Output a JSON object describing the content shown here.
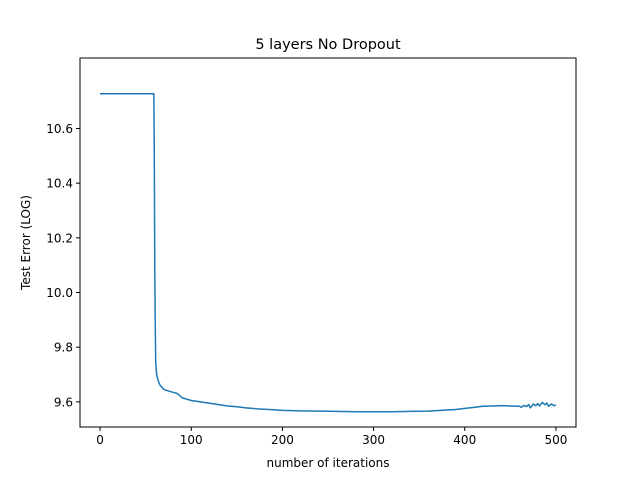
{
  "chart_data": {
    "type": "line",
    "title": "5 layers No Dropout",
    "xlabel": "number of iterations",
    "ylabel": "Test Error (LOG)",
    "xlim": [
      -22,
      522
    ],
    "ylim": [
      9.508,
      10.858
    ],
    "xticks": [
      0,
      100,
      200,
      300,
      400,
      500
    ],
    "xtick_labels": [
      "0",
      "100",
      "200",
      "300",
      "400",
      "500"
    ],
    "yticks": [
      9.6,
      9.8,
      10.0,
      10.2,
      10.4,
      10.6
    ],
    "ytick_labels": [
      "9.6",
      "9.8",
      "10.0",
      "10.2",
      "10.4",
      "10.6"
    ],
    "grid": false,
    "line_color": "#1f77b4",
    "series": [
      {
        "x": [
          0,
          58,
          59,
          59.5,
          60,
          60.5,
          61,
          62,
          64,
          66,
          70,
          75,
          80,
          85,
          90,
          100,
          110,
          120,
          130,
          140,
          150,
          160,
          170,
          180,
          190,
          200,
          220,
          240,
          260,
          280,
          300,
          320,
          340,
          360,
          380,
          390,
          395,
          400,
          410,
          420,
          430,
          440,
          450,
          460,
          462,
          465,
          468,
          470,
          472,
          475,
          478,
          480,
          482,
          485,
          488,
          490,
          492,
          495,
          498,
          500
        ],
        "y": [
          10.727,
          10.727,
          10.727,
          10.5,
          10.1,
          9.9,
          9.75,
          9.7,
          9.675,
          9.66,
          9.645,
          9.64,
          9.635,
          9.63,
          9.615,
          9.605,
          9.6,
          9.595,
          9.59,
          9.585,
          9.582,
          9.578,
          9.575,
          9.573,
          9.571,
          9.569,
          9.567,
          9.566,
          9.565,
          9.564,
          9.564,
          9.564,
          9.565,
          9.566,
          9.57,
          9.572,
          9.574,
          9.576,
          9.58,
          9.584,
          9.585,
          9.586,
          9.585,
          9.584,
          9.58,
          9.587,
          9.583,
          9.59,
          9.578,
          9.592,
          9.586,
          9.594,
          9.585,
          9.598,
          9.589,
          9.596,
          9.584,
          9.592,
          9.586,
          9.589
        ]
      }
    ]
  }
}
